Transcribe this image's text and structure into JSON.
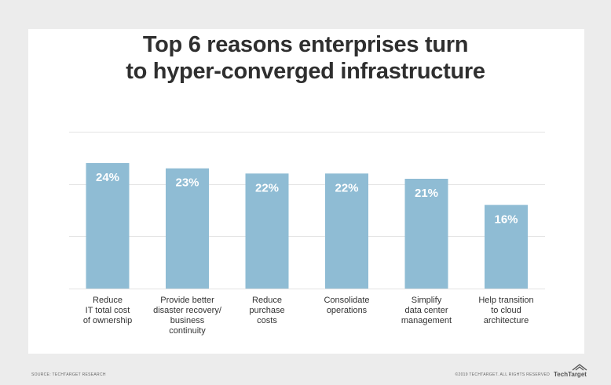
{
  "chart_data": {
    "type": "bar",
    "title_lines": [
      "Top 6 reasons enterprises turn",
      "to hyper-converged infrastructure"
    ],
    "categories": [
      [
        "Reduce",
        "IT total cost",
        "of ownership"
      ],
      [
        "Provide better",
        "disaster recovery/",
        "business",
        "continuity"
      ],
      [
        "Reduce",
        "purchase",
        "costs"
      ],
      [
        "Consolidate",
        "operations"
      ],
      [
        "Simplify",
        "data center",
        "management"
      ],
      [
        "Help transition",
        "to cloud",
        "architecture"
      ]
    ],
    "values": [
      24,
      23,
      22,
      22,
      21,
      16
    ],
    "value_labels": [
      "24%",
      "23%",
      "22%",
      "22%",
      "21%",
      "16%"
    ],
    "ylim": [
      0,
      30
    ],
    "grid": true,
    "bar_color": "#8fbcd4",
    "grid_color": "#e4e4e4"
  },
  "footer": {
    "source": "SOURCE: TECHTARGET RESEARCH",
    "copyright": "©2019 TECHTARGET. ALL RIGHTS RESERVED",
    "logo_text": "TechTarget",
    "logo_icon": "techtarget-logo-icon"
  }
}
